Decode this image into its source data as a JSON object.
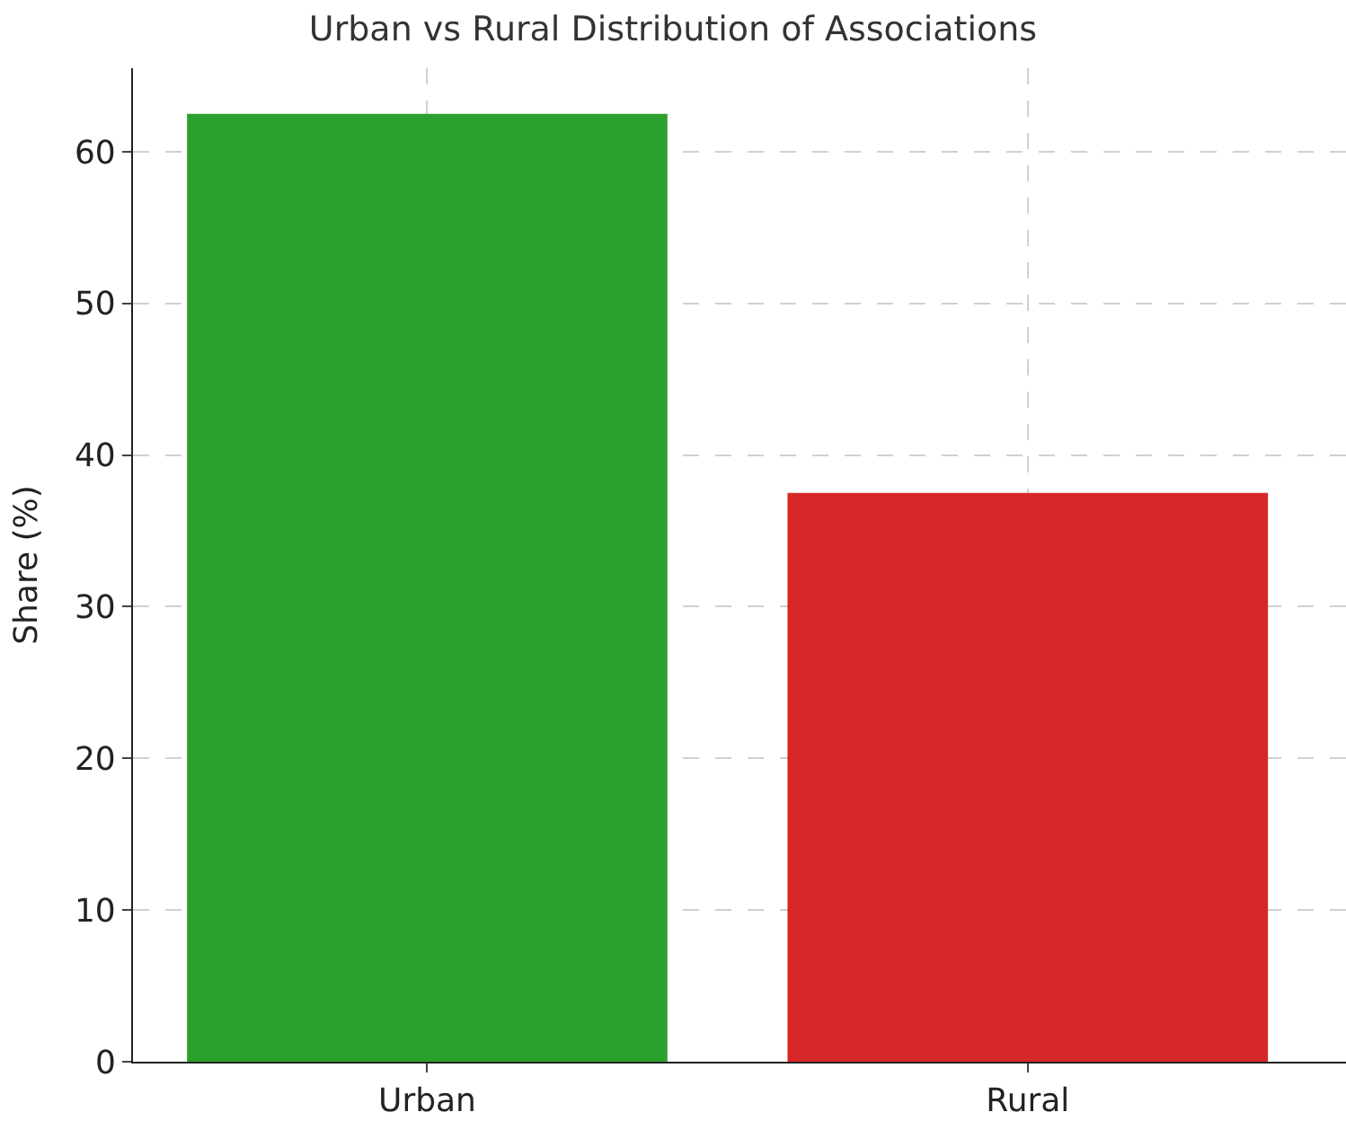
{
  "chart_data": {
    "type": "bar",
    "title": "Urban vs Rural Distribution of Associations",
    "ylabel": "Share (%)",
    "categories": [
      "Urban",
      "Rural"
    ],
    "values": [
      62.5,
      37.5
    ],
    "colors": [
      "#2ca02c",
      "#d62728"
    ],
    "ylim": [
      0,
      65.5
    ],
    "yticks": [
      0,
      10,
      20,
      30,
      40,
      50,
      60
    ],
    "grid": true
  }
}
